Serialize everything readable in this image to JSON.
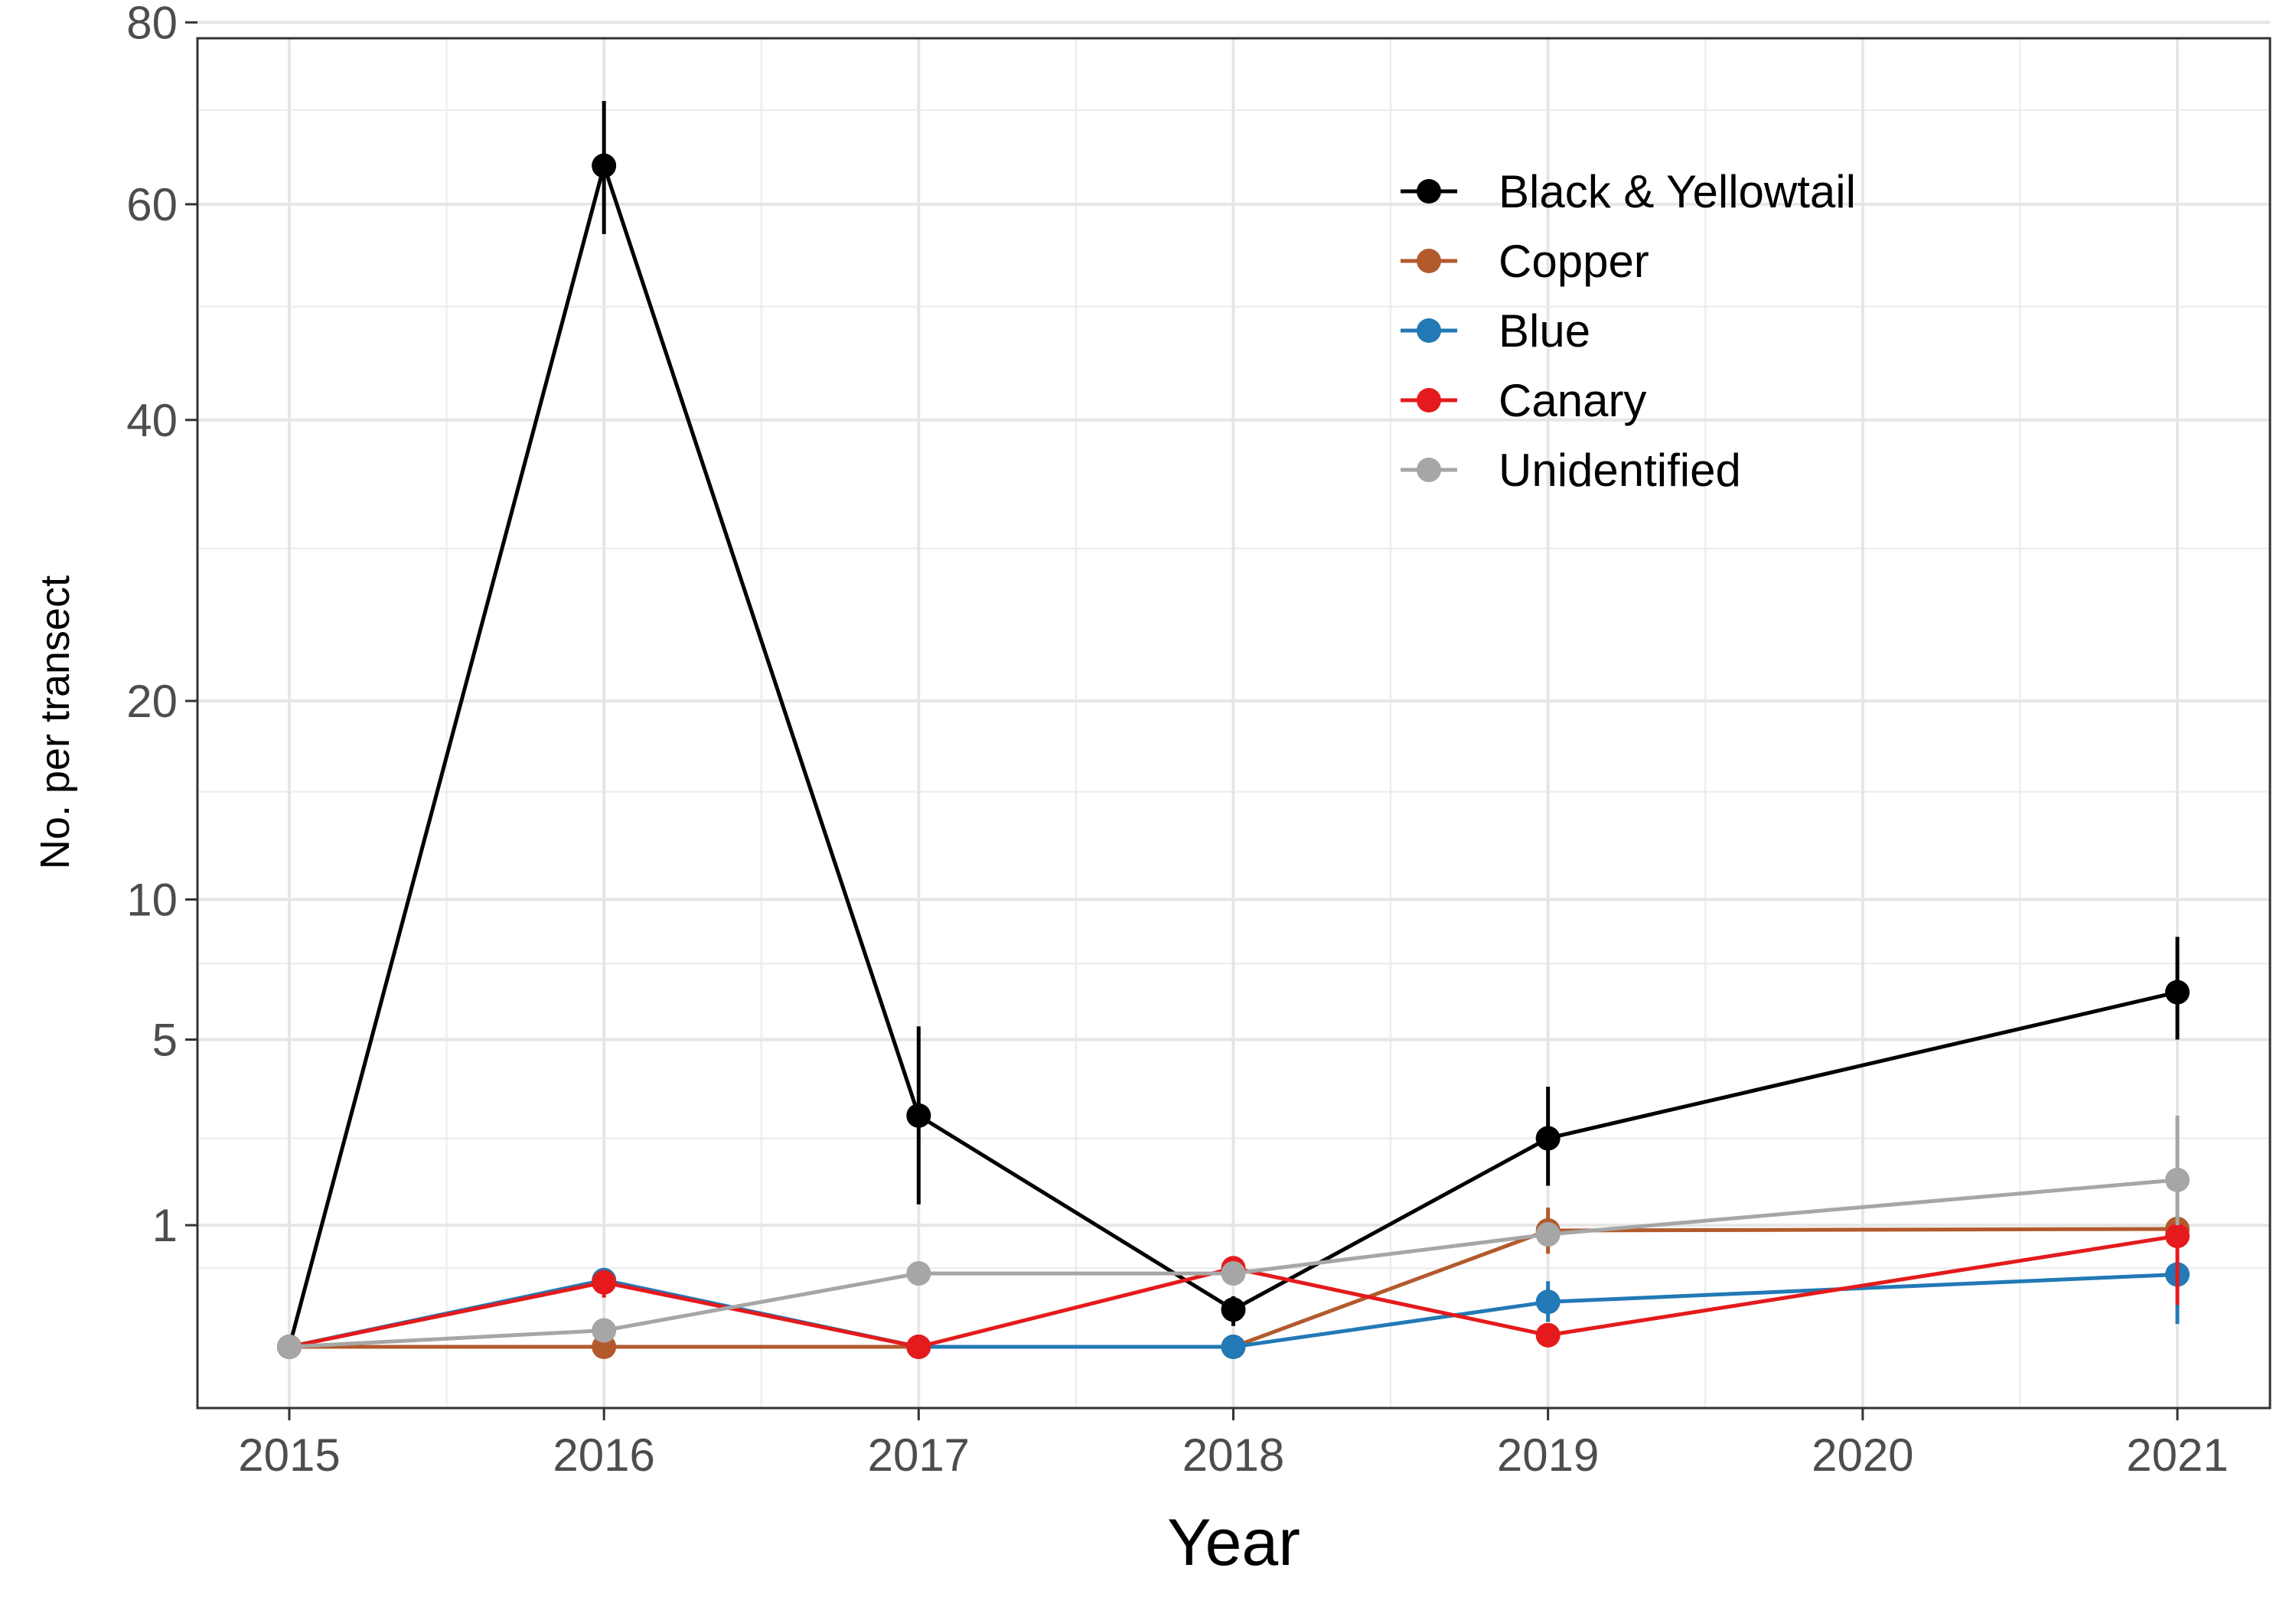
{
  "chart_data": {
    "type": "line",
    "title": "",
    "xlabel": "Year",
    "ylabel": "No. per transect",
    "x": [
      2015,
      2016,
      2017,
      2018,
      2019,
      2020,
      2021
    ],
    "x_ticks": [
      "2015",
      "2016",
      "2017",
      "2018",
      "2019",
      "2020",
      "2021"
    ],
    "xlim": [
      2014.7,
      2021.3
    ],
    "y_scale": "square-root-like (pseudo-log)",
    "y_ticks": [
      1,
      5,
      10,
      20,
      40,
      60,
      80
    ],
    "y_tick_labels": [
      "1",
      "5",
      "10",
      "20",
      "40",
      "60",
      "80"
    ],
    "ylim": [
      0,
      80
    ],
    "grid": true,
    "legend_position": "top-right",
    "error_bars": true,
    "series": [
      {
        "name": "Black & Yellowtail",
        "color": "#000000",
        "points": [
          {
            "x": 2015,
            "y": 0,
            "lo": 0,
            "hi": 0
          },
          {
            "x": 2016,
            "y": 64,
            "lo": 57,
            "hi": 71
          },
          {
            "x": 2017,
            "y": 3.0,
            "lo": 1.3,
            "hi": 5.4
          },
          {
            "x": 2018,
            "y": 0.17,
            "lo": 0.08,
            "hi": 0.26
          },
          {
            "x": 2019,
            "y": 2.5,
            "lo": 1.6,
            "hi": 3.7
          },
          {
            "x": 2021,
            "y": 6.5,
            "lo": 5.0,
            "hi": 8.5
          }
        ]
      },
      {
        "name": "Copper",
        "color": "#b35a2c",
        "points": [
          {
            "x": 2015,
            "y": 0,
            "lo": 0,
            "hi": 0
          },
          {
            "x": 2016,
            "y": 0,
            "lo": 0,
            "hi": 0
          },
          {
            "x": 2017,
            "y": 0,
            "lo": 0,
            "hi": 0
          },
          {
            "x": 2018,
            "y": 0,
            "lo": 0,
            "hi": 0
          },
          {
            "x": 2019,
            "y": 0.93,
            "lo": 0.65,
            "hi": 1.25
          },
          {
            "x": 2021,
            "y": 0.95,
            "lo": 0.95,
            "hi": 0.95
          }
        ]
      },
      {
        "name": "Blue",
        "color": "#2279b5",
        "points": [
          {
            "x": 2015,
            "y": 0,
            "lo": 0,
            "hi": 0
          },
          {
            "x": 2016,
            "y": 0.39,
            "lo": 0.3,
            "hi": 0.47
          },
          {
            "x": 2017,
            "y": 0,
            "lo": 0,
            "hi": 0
          },
          {
            "x": 2018,
            "y": 0,
            "lo": 0,
            "hi": 0
          },
          {
            "x": 2019,
            "y": 0.22,
            "lo": 0.1,
            "hi": 0.38
          },
          {
            "x": 2021,
            "y": 0.44,
            "lo": 0.09,
            "hi": 1.0
          }
        ]
      },
      {
        "name": "Canary",
        "color": "#e41a1c",
        "points": [
          {
            "x": 2015,
            "y": 0,
            "lo": 0,
            "hi": 0
          },
          {
            "x": 2016,
            "y": 0.37,
            "lo": 0.25,
            "hi": 0.45
          },
          {
            "x": 2017,
            "y": 0,
            "lo": 0,
            "hi": 0
          },
          {
            "x": 2018,
            "y": 0.5,
            "lo": 0.5,
            "hi": 0.5
          },
          {
            "x": 2019,
            "y": 0.04,
            "lo": 0.04,
            "hi": 0.04
          },
          {
            "x": 2021,
            "y": 0.86,
            "lo": 0.2,
            "hi": 1.4
          }
        ]
      },
      {
        "name": "Unidentified",
        "color": "#a6a6a6",
        "points": [
          {
            "x": 2015,
            "y": 0,
            "lo": 0,
            "hi": 0
          },
          {
            "x": 2016,
            "y": 0.06,
            "lo": 0.06,
            "hi": 0.06
          },
          {
            "x": 2017,
            "y": 0.45,
            "lo": 0.45,
            "hi": 0.45
          },
          {
            "x": 2018,
            "y": 0.45,
            "lo": 0.45,
            "hi": 0.45
          },
          {
            "x": 2019,
            "y": 0.88,
            "lo": 0.88,
            "hi": 0.88
          },
          {
            "x": 2021,
            "y": 1.7,
            "lo": 1.0,
            "hi": 3.0
          }
        ]
      }
    ]
  }
}
